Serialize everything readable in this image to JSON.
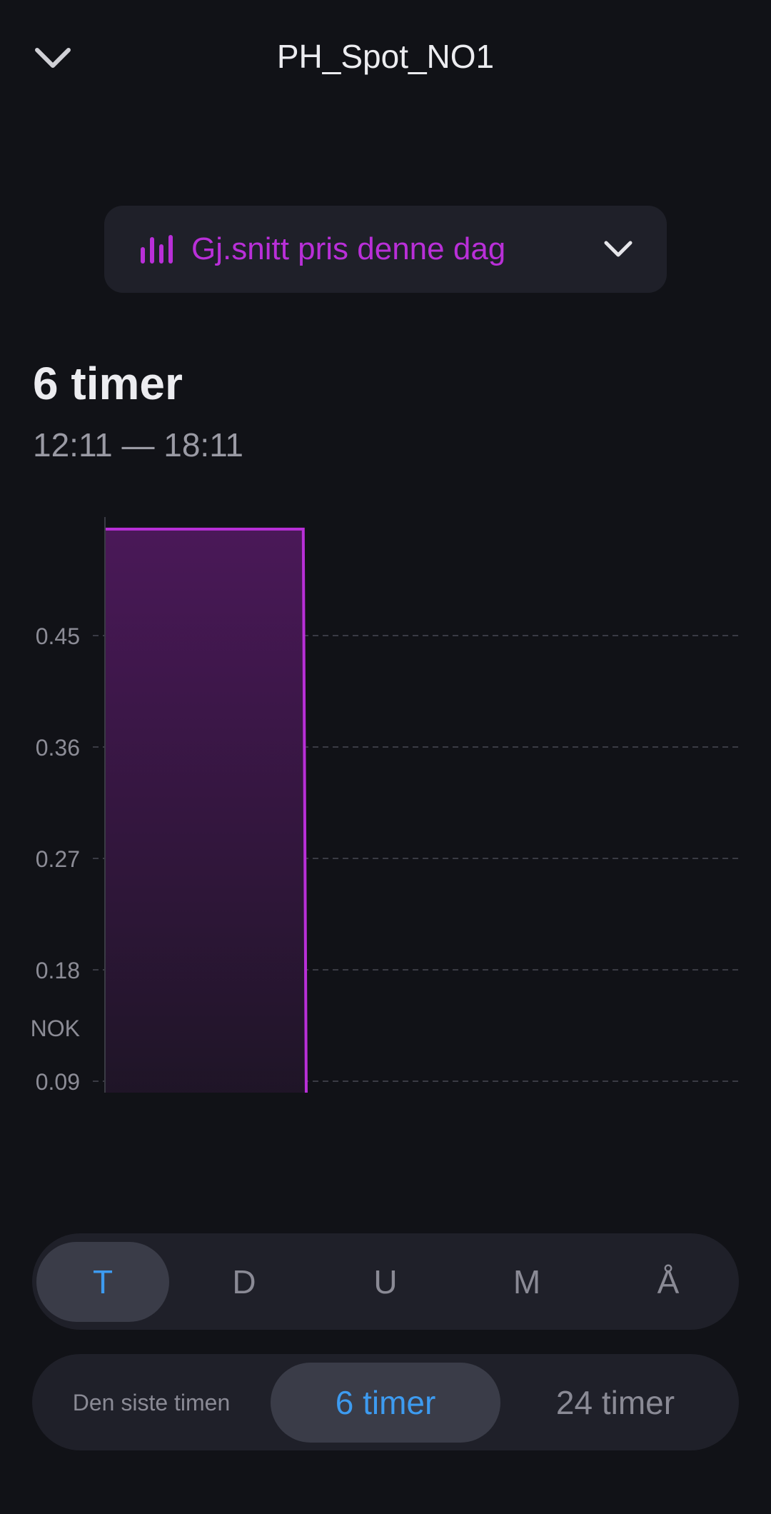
{
  "header": {
    "title": "PH_Spot_NO1",
    "back_icon": "chevron-down-icon"
  },
  "metric_select": {
    "label": "Gj.snitt pris denne dag",
    "icon": "bar-chart-icon",
    "color": "#b92fd8"
  },
  "range": {
    "title": "6 timer",
    "subtitle": "12:11 — 18:11"
  },
  "chart_data": {
    "type": "area",
    "step": true,
    "ylabel": "NOK",
    "ylim": [
      0,
      0.54
    ],
    "yticks": [
      "0",
      "0.09",
      "0.18",
      "0.27",
      "0.36",
      "0.45"
    ],
    "xlim": [
      "12:11",
      "18:11"
    ],
    "xticks": [
      "13:00",
      "14:00",
      "15:00",
      "16:00",
      "17:00",
      "18:00"
    ],
    "grid": true,
    "color": "#b92fd8",
    "points": [
      {
        "x": "12:11",
        "y": 0.536
      },
      {
        "x": "14:04",
        "y": 0.536
      },
      {
        "x": "14:06",
        "y": 0
      },
      {
        "x": "18:11",
        "y": 0
      }
    ]
  },
  "period_tabs": {
    "items": [
      "T",
      "D",
      "U",
      "M",
      "Å"
    ],
    "selected": 0
  },
  "window_tabs": {
    "items": [
      "Den siste timen",
      "6 timer",
      "24 timer"
    ],
    "selected": 1
  },
  "accent": "#3d9bf0"
}
